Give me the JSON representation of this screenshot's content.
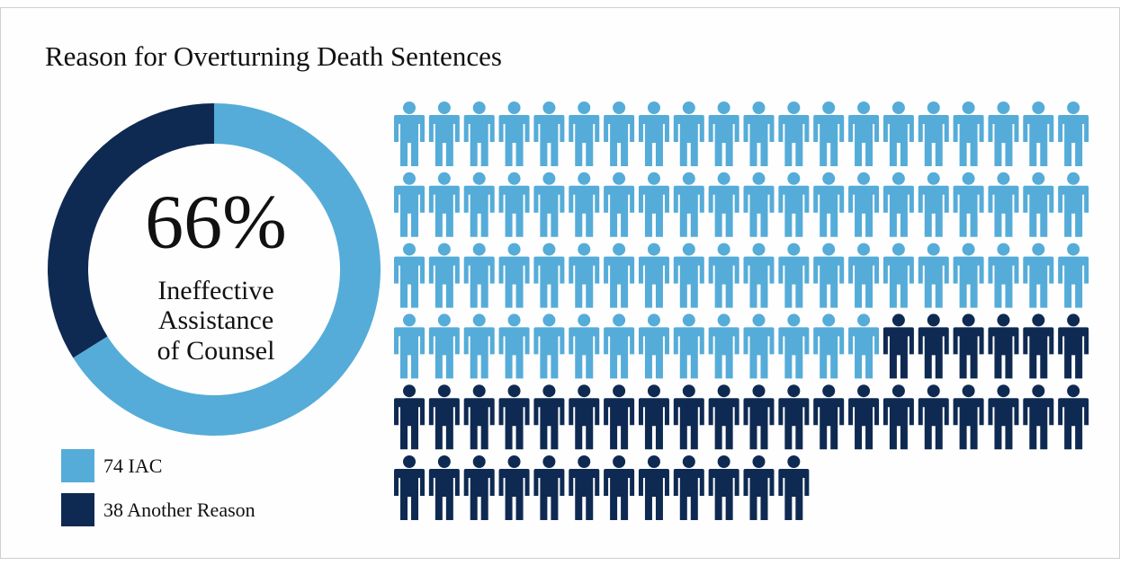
{
  "chart_data": {
    "type": "donut-pictogram",
    "title": "Reason for Overturning Death Sentences",
    "center_text": "66%",
    "center_subtitle": [
      "Ineffective",
      "Assistance",
      "of Counsel"
    ],
    "values": [
      74,
      38
    ],
    "value_labels": [
      "74 IAC",
      "38 Another Reason"
    ],
    "colors": [
      "#55acd8",
      "#0f2a52"
    ]
  }
}
